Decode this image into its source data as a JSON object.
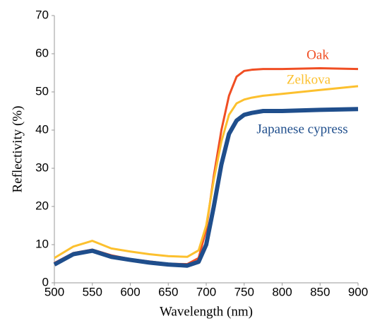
{
  "chart_data": {
    "type": "line",
    "x_label": "Wavelength (nm)",
    "y_label": "Reflectivity (%)",
    "x": [
      500,
      525,
      550,
      575,
      600,
      625,
      650,
      675,
      690,
      700,
      710,
      720,
      730,
      740,
      750,
      760,
      775,
      800,
      850,
      900
    ],
    "series": [
      {
        "name": "Oak",
        "color": "#f04e23",
        "values": [
          5.2,
          7.8,
          8.7,
          7.2,
          6.2,
          5.6,
          5.0,
          4.9,
          6.5,
          14,
          28,
          40,
          49,
          54,
          55.5,
          55.8,
          56,
          56,
          56.2,
          56
        ]
      },
      {
        "name": "Zelkova",
        "color": "#fcc02e",
        "values": [
          6.5,
          9.5,
          11,
          9,
          8.2,
          7.5,
          7.0,
          6.8,
          8.5,
          15,
          27,
          37,
          44,
          47,
          48,
          48.5,
          49,
          49.5,
          50.5,
          51.5
        ]
      },
      {
        "name": "Japanese cypress",
        "color": "#1f4e8c",
        "values": [
          4.8,
          7.5,
          8.4,
          6.8,
          6.0,
          5.3,
          4.8,
          4.5,
          5.5,
          10,
          20,
          31,
          39,
          42.5,
          44,
          44.5,
          45,
          45,
          45.3,
          45.5
        ]
      }
    ],
    "xlim": [
      500,
      900
    ],
    "xticks": [
      500,
      550,
      600,
      650,
      700,
      750,
      800,
      850,
      900
    ],
    "ylim": [
      0,
      70
    ],
    "yticks": [
      0,
      10,
      20,
      30,
      40,
      50,
      60,
      70
    ]
  }
}
